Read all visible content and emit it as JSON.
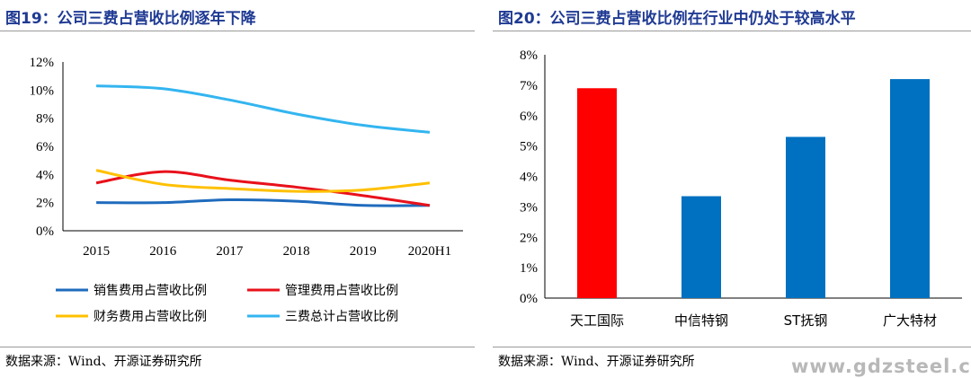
{
  "left": {
    "title": "图19：公司三费占营收比例逐年下降",
    "source": "数据来源：Wind、开源证券研究所"
  },
  "right": {
    "title": "图20：公司三费占营收比例在行业中仍处于较高水平",
    "source": "数据来源：Wind、开源证券研究所"
  },
  "watermark": "www.gdzsteel.com",
  "chart_data": [
    {
      "type": "line",
      "title": "",
      "x": [
        "2015",
        "2016",
        "2017",
        "2018",
        "2019",
        "2020H1"
      ],
      "ylim": [
        0,
        12
      ],
      "yticks": [
        "0%",
        "2%",
        "4%",
        "6%",
        "8%",
        "10%",
        "12%"
      ],
      "legend_position": "bottom",
      "series": [
        {
          "name": "销售费用占营收比例",
          "color": "#1f6bbd",
          "values": [
            2.0,
            2.0,
            2.2,
            2.1,
            1.8,
            1.8
          ]
        },
        {
          "name": "管理费用占营收比例",
          "color": "#e8111b",
          "values": [
            3.4,
            4.2,
            3.6,
            3.1,
            2.5,
            1.8
          ]
        },
        {
          "name": "财务费用占营收比例",
          "color": "#ffc000",
          "values": [
            4.3,
            3.3,
            3.0,
            2.8,
            2.9,
            3.4
          ]
        },
        {
          "name": "三费总计占营收比例",
          "color": "#33b5f0",
          "values": [
            10.3,
            10.1,
            9.3,
            8.3,
            7.5,
            7.0
          ]
        }
      ]
    },
    {
      "type": "bar",
      "title": "",
      "categories": [
        "天工国际",
        "中信特钢",
        "ST抚钢",
        "广大特材"
      ],
      "values": [
        6.9,
        3.35,
        5.3,
        7.2
      ],
      "colors": [
        "#ff0000",
        "#0070c0",
        "#0070c0",
        "#0070c0"
      ],
      "ylim": [
        0,
        8
      ],
      "yticks": [
        "0%",
        "1%",
        "2%",
        "3%",
        "4%",
        "5%",
        "6%",
        "7%",
        "8%"
      ]
    }
  ]
}
